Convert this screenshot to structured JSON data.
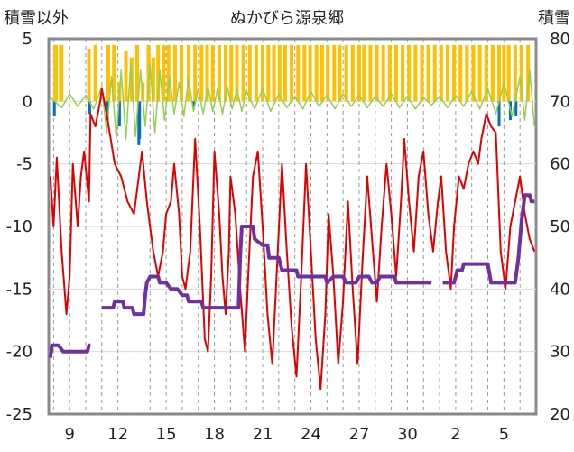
{
  "chart_data": {
    "type": "line",
    "title": "ぬかびら源泉郷",
    "left_axis_label": "積雪以外",
    "right_axis_label": "積雪",
    "ylim_left": [
      -25,
      5
    ],
    "ylim_right": [
      20,
      80
    ],
    "left_ticks": [
      "5",
      "0",
      "-5",
      "-10",
      "-15",
      "-20",
      "-25"
    ],
    "right_ticks": [
      "80",
      "70",
      "60",
      "50",
      "40",
      "30",
      "20"
    ],
    "x_ticks": [
      "9",
      "12",
      "15",
      "18",
      "21",
      "24",
      "27",
      "30",
      "2",
      "5"
    ],
    "x_tick_days": [
      9,
      12,
      15,
      18,
      21,
      24,
      27,
      30,
      33,
      36
    ],
    "x_range_days": [
      7.7,
      38.0
    ],
    "series": [
      {
        "role": "snow_depth",
        "axis": "right",
        "color": "#7030a0",
        "points": [
          [
            7.8,
            29
          ],
          [
            7.9,
            31
          ],
          [
            8.3,
            31
          ],
          [
            8.6,
            30
          ],
          [
            9.0,
            30
          ],
          [
            9.5,
            30
          ],
          [
            10.1,
            30
          ],
          [
            10.2,
            31
          ],
          [
            10.3,
            31
          ],
          [
            null,
            null
          ],
          [
            11.0,
            37
          ],
          [
            11.3,
            37
          ],
          [
            11.7,
            37
          ],
          [
            11.8,
            38
          ],
          [
            12.3,
            38
          ],
          [
            12.4,
            37
          ],
          [
            12.9,
            37
          ],
          [
            13.0,
            36
          ],
          [
            13.6,
            36
          ],
          [
            13.7,
            39
          ],
          [
            13.8,
            41
          ],
          [
            14.0,
            42
          ],
          [
            14.5,
            42
          ],
          [
            14.6,
            41
          ],
          [
            15.0,
            41
          ],
          [
            15.3,
            40
          ],
          [
            15.7,
            40
          ],
          [
            16.0,
            39
          ],
          [
            16.3,
            39
          ],
          [
            16.4,
            38
          ],
          [
            17.2,
            38
          ],
          [
            17.3,
            37
          ],
          [
            19.5,
            37
          ],
          [
            19.6,
            45
          ],
          [
            19.7,
            50
          ],
          [
            20.4,
            50
          ],
          [
            20.5,
            48
          ],
          [
            21.0,
            47
          ],
          [
            21.3,
            47
          ],
          [
            21.4,
            45
          ],
          [
            22.0,
            45
          ],
          [
            22.2,
            43
          ],
          [
            23.1,
            43
          ],
          [
            23.2,
            42
          ],
          [
            24.9,
            42
          ],
          [
            25.0,
            41
          ],
          [
            25.4,
            42
          ],
          [
            26.0,
            42
          ],
          [
            26.2,
            41
          ],
          [
            26.8,
            41
          ],
          [
            27.0,
            42
          ],
          [
            27.6,
            42
          ],
          [
            27.8,
            41
          ],
          [
            28.1,
            41
          ],
          [
            28.3,
            42
          ],
          [
            29.2,
            42
          ],
          [
            29.3,
            41
          ],
          [
            31.5,
            41
          ],
          [
            null,
            null
          ],
          [
            32.2,
            41
          ],
          [
            32.9,
            41
          ],
          [
            33.1,
            43
          ],
          [
            33.4,
            43
          ],
          [
            33.5,
            44
          ],
          [
            35.0,
            44
          ],
          [
            35.2,
            41
          ],
          [
            36.7,
            41
          ],
          [
            36.9,
            45
          ],
          [
            37.1,
            51
          ],
          [
            37.3,
            55
          ],
          [
            37.6,
            55
          ],
          [
            37.7,
            54
          ],
          [
            37.9,
            54
          ]
        ]
      },
      {
        "role": "temperature",
        "axis": "left",
        "color": "#e00000",
        "points": [
          [
            7.8,
            -6
          ],
          [
            8.0,
            -10
          ],
          [
            8.2,
            -4.5
          ],
          [
            8.5,
            -12
          ],
          [
            8.8,
            -17
          ],
          [
            9.0,
            -14
          ],
          [
            9.2,
            -5
          ],
          [
            9.5,
            -10
          ],
          [
            9.7,
            -6
          ],
          [
            9.9,
            -4
          ],
          [
            10.2,
            -8
          ],
          [
            10.3,
            -1
          ],
          [
            10.6,
            -2
          ],
          [
            10.9,
            0
          ],
          [
            11.0,
            1
          ],
          [
            11.3,
            -1
          ],
          [
            11.8,
            -5
          ],
          [
            12.2,
            -6
          ],
          [
            12.6,
            -8
          ],
          [
            13.0,
            -9
          ],
          [
            13.3,
            -6
          ],
          [
            13.5,
            -4
          ],
          [
            13.8,
            -8
          ],
          [
            14.2,
            -12
          ],
          [
            14.5,
            -14
          ],
          [
            14.8,
            -12
          ],
          [
            15.0,
            -9
          ],
          [
            15.3,
            -8
          ],
          [
            15.5,
            -5
          ],
          [
            15.8,
            -9
          ],
          [
            16.0,
            -14
          ],
          [
            16.2,
            -15
          ],
          [
            16.5,
            -12
          ],
          [
            16.8,
            -3
          ],
          [
            17.1,
            -10
          ],
          [
            17.4,
            -19
          ],
          [
            17.6,
            -20
          ],
          [
            17.8,
            -14
          ],
          [
            18.0,
            -4
          ],
          [
            18.3,
            -9
          ],
          [
            18.5,
            -14
          ],
          [
            18.7,
            -17
          ],
          [
            18.9,
            -12
          ],
          [
            19.0,
            -6
          ],
          [
            19.3,
            -9
          ],
          [
            19.6,
            -15
          ],
          [
            19.9,
            -20
          ],
          [
            20.1,
            -14
          ],
          [
            20.4,
            -6
          ],
          [
            20.7,
            -4
          ],
          [
            21.0,
            -10
          ],
          [
            21.3,
            -17
          ],
          [
            21.6,
            -21
          ],
          [
            21.9,
            -13
          ],
          [
            22.2,
            -5
          ],
          [
            22.5,
            -12
          ],
          [
            22.8,
            -18
          ],
          [
            23.1,
            -22
          ],
          [
            23.4,
            -14
          ],
          [
            23.7,
            -5
          ],
          [
            24.0,
            -12
          ],
          [
            24.3,
            -19
          ],
          [
            24.6,
            -23
          ],
          [
            24.9,
            -17
          ],
          [
            25.1,
            -9
          ],
          [
            25.4,
            -14
          ],
          [
            25.7,
            -21
          ],
          [
            26.0,
            -16
          ],
          [
            26.3,
            -8
          ],
          [
            26.6,
            -15
          ],
          [
            26.9,
            -21
          ],
          [
            27.2,
            -13
          ],
          [
            27.5,
            -6
          ],
          [
            27.8,
            -11
          ],
          [
            28.1,
            -16
          ],
          [
            28.4,
            -10
          ],
          [
            28.7,
            -5
          ],
          [
            29.0,
            -9
          ],
          [
            29.3,
            -14
          ],
          [
            29.6,
            -8
          ],
          [
            29.8,
            -3
          ],
          [
            30.1,
            -8
          ],
          [
            30.4,
            -12
          ],
          [
            30.7,
            -6
          ],
          [
            31.0,
            -4
          ],
          [
            31.3,
            -9
          ],
          [
            31.6,
            -12
          ],
          [
            31.9,
            -8
          ],
          [
            32.1,
            -6
          ],
          [
            32.4,
            -12
          ],
          [
            32.7,
            -15
          ],
          [
            32.9,
            -10
          ],
          [
            33.2,
            -6
          ],
          [
            33.5,
            -7
          ],
          [
            33.8,
            -5
          ],
          [
            34.1,
            -4
          ],
          [
            34.4,
            -5
          ],
          [
            34.6,
            -3
          ],
          [
            34.9,
            -1
          ],
          [
            35.2,
            -2
          ],
          [
            35.5,
            -2.5
          ],
          [
            35.8,
            -12
          ],
          [
            36.1,
            -15
          ],
          [
            36.4,
            -10
          ],
          [
            36.7,
            -8
          ],
          [
            37.0,
            -6
          ],
          [
            37.3,
            -9
          ],
          [
            37.6,
            -11
          ],
          [
            37.9,
            -12
          ]
        ]
      },
      {
        "role": "green_variable",
        "axis": "left",
        "color": "#92d050",
        "points": [
          [
            7.8,
            0.3
          ],
          [
            8.5,
            -0.5
          ],
          [
            9.0,
            0.6
          ],
          [
            9.5,
            -0.4
          ],
          [
            10.0,
            0.5
          ],
          [
            10.5,
            -0.6
          ],
          [
            11.0,
            1.2
          ],
          [
            11.3,
            -2.5
          ],
          [
            11.6,
            2.0
          ],
          [
            11.9,
            -3.0
          ],
          [
            12.2,
            2.5
          ],
          [
            12.5,
            -3.0
          ],
          [
            12.8,
            3.0
          ],
          [
            13.1,
            -2.8
          ],
          [
            13.4,
            2.5
          ],
          [
            13.7,
            -2.0
          ],
          [
            14.0,
            3.0
          ],
          [
            14.3,
            -2.5
          ],
          [
            14.6,
            2.5
          ],
          [
            14.9,
            -1.5
          ],
          [
            15.2,
            2.0
          ],
          [
            15.5,
            -1.0
          ],
          [
            15.8,
            1.5
          ],
          [
            16.1,
            -1.2
          ],
          [
            16.4,
            1.8
          ],
          [
            16.7,
            -0.8
          ],
          [
            17.0,
            1.0
          ],
          [
            17.3,
            -1.0
          ],
          [
            17.6,
            1.2
          ],
          [
            17.9,
            -0.8
          ],
          [
            18.2,
            1.0
          ],
          [
            18.5,
            -1.0
          ],
          [
            18.8,
            1.2
          ],
          [
            19.1,
            -0.6
          ],
          [
            19.4,
            1.0
          ],
          [
            19.7,
            -0.8
          ],
          [
            20.0,
            0.8
          ],
          [
            20.5,
            -0.6
          ],
          [
            21.0,
            1.0
          ],
          [
            21.5,
            -0.8
          ],
          [
            22.0,
            0.6
          ],
          [
            22.5,
            -0.5
          ],
          [
            23.0,
            0.4
          ],
          [
            23.5,
            -0.6
          ],
          [
            24.0,
            0.8
          ],
          [
            24.5,
            -0.4
          ],
          [
            25.0,
            0.5
          ],
          [
            25.5,
            -0.6
          ],
          [
            26.0,
            0.6
          ],
          [
            26.5,
            -0.4
          ],
          [
            27.0,
            0.5
          ],
          [
            27.5,
            -0.5
          ],
          [
            28.0,
            0.4
          ],
          [
            28.5,
            -0.4
          ],
          [
            29.0,
            0.6
          ],
          [
            29.5,
            -0.5
          ],
          [
            30.0,
            0.4
          ],
          [
            30.5,
            -0.6
          ],
          [
            31.0,
            0.3
          ],
          [
            31.5,
            -0.3
          ],
          [
            32.0,
            0.4
          ],
          [
            32.5,
            -0.5
          ],
          [
            33.0,
            0.5
          ],
          [
            33.5,
            -0.4
          ],
          [
            34.0,
            0.8
          ],
          [
            34.5,
            -0.6
          ],
          [
            35.0,
            1.0
          ],
          [
            35.5,
            -1.0
          ],
          [
            36.0,
            1.5
          ],
          [
            36.5,
            -1.2
          ],
          [
            37.0,
            2.0
          ],
          [
            37.3,
            -1.5
          ],
          [
            37.6,
            2.5
          ],
          [
            37.9,
            -2.0
          ]
        ]
      }
    ],
    "bars_orange": {
      "axis": "left",
      "color": "#ffc000",
      "baseline": 0,
      "x": [
        8.1,
        8.15,
        8.45,
        8.5,
        10.2,
        10.6,
        11.4,
        11.75,
        12.1,
        12.5,
        12.85,
        13.2,
        13.55,
        13.9,
        14.2,
        14.5,
        14.85,
        15.15,
        15.55,
        15.95,
        16.4,
        16.8,
        17.2,
        17.55,
        17.9,
        18.3,
        18.7,
        19.05,
        19.4,
        19.8,
        20.2,
        20.6,
        21.0,
        21.35,
        21.7,
        22.05,
        22.4,
        22.8,
        23.2,
        23.6,
        23.95,
        24.35,
        24.7,
        25.05,
        25.45,
        25.8,
        26.2,
        26.6,
        27.0,
        27.3,
        27.7,
        28.1,
        28.5,
        28.9,
        29.3,
        29.7,
        30.1,
        30.5,
        30.9,
        31.3,
        31.7,
        32.1,
        32.5,
        32.9,
        33.3,
        33.7,
        34.1,
        34.5,
        34.9,
        35.3,
        35.7,
        36.0,
        36.3,
        36.7,
        37.1,
        37.5
      ],
      "values": [
        4.5,
        4.5,
        4.5,
        4.5,
        4.2,
        4.5,
        4.5,
        4.5,
        1.5,
        4.0,
        3.5,
        4.5,
        1.5,
        4.5,
        3.5,
        4.5,
        4.5,
        4.5,
        4.5,
        4.5,
        4.5,
        4.5,
        4.5,
        4.5,
        4.5,
        4.5,
        4.5,
        4.5,
        4.5,
        4.5,
        4.5,
        4.5,
        4.5,
        4.5,
        4.5,
        4.5,
        4.5,
        4.5,
        4.5,
        4.5,
        4.5,
        4.5,
        4.5,
        4.5,
        4.5,
        4.5,
        4.5,
        4.5,
        4.5,
        4.5,
        4.5,
        4.5,
        4.5,
        4.5,
        4.5,
        4.5,
        4.5,
        4.5,
        4.5,
        4.5,
        4.5,
        4.5,
        4.5,
        4.5,
        4.5,
        4.5,
        4.5,
        4.5,
        4.5,
        4.5,
        4.5,
        4.5,
        4.5,
        4.5,
        4.5,
        4.5
      ]
    },
    "bars_blue": {
      "axis": "left",
      "color": "#0070c0",
      "baseline": 0,
      "x": [
        8.05,
        10.25,
        11.35,
        12.1,
        13.3,
        13.35,
        16.7,
        35.7,
        36.4,
        36.75
      ],
      "values": [
        -1.2,
        -1.0,
        -1.5,
        -2.0,
        -3.5,
        -3.0,
        -0.6,
        -2.0,
        -1.5,
        -1.2
      ]
    }
  }
}
